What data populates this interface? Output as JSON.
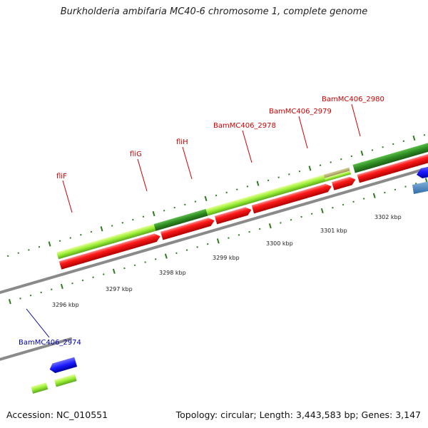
{
  "header": {
    "title": "Burkholderia ambifaria MC40-6 chromosome 1, complete genome"
  },
  "footer": {
    "accession": "Accession: NC_010551",
    "topology": "Topology: circular; Length: 3,443,583 bp; Genes: 3,147"
  },
  "colors": {
    "backbone": "#8a8a8a",
    "cds_red": "#ff1010",
    "cds_green_light": "#99ee33",
    "cds_green_dark": "#2e8b22",
    "cds_blue": "#1a1aff",
    "cds_steel": "#4a86c0",
    "label_red": "#cc0000",
    "label_blue": "#0000aa",
    "tick_green": "#2e7d1e"
  },
  "scale": {
    "unit": "kbp",
    "ticks": [
      {
        "value": 3296,
        "label": "3296 kbp"
      },
      {
        "value": 3297,
        "label": "3297 kbp"
      },
      {
        "value": 3298,
        "label": "3298 kbp"
      },
      {
        "value": 3299,
        "label": "3299 kbp"
      },
      {
        "value": 3300,
        "label": "3300 kbp"
      },
      {
        "value": 3301,
        "label": "3301 kbp"
      },
      {
        "value": 3302,
        "label": "3302 kbp"
      }
    ]
  },
  "gene_labels": [
    {
      "text": "fliF",
      "color": "label_red"
    },
    {
      "text": "fliG",
      "color": "label_red"
    },
    {
      "text": "fliH",
      "color": "label_red"
    },
    {
      "text": "BamMC406_2978",
      "color": "label_red"
    },
    {
      "text": "BamMC406_2979",
      "color": "label_red"
    },
    {
      "text": "BamMC406_2980",
      "color": "label_red"
    },
    {
      "text": "BamMC406_2974",
      "color": "label_blue"
    }
  ]
}
